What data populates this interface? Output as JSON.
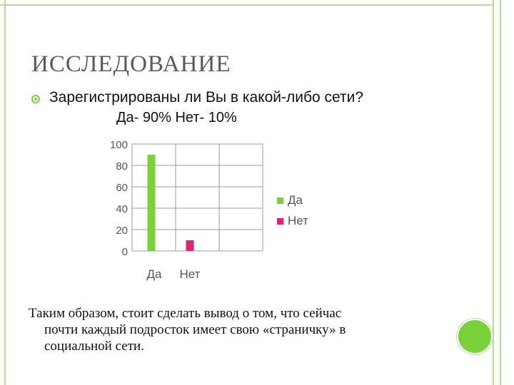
{
  "slide": {
    "title": "ИССЛЕДОВАНИЕ",
    "question": "Зарегистрированы ли Вы в какой-либо сети?",
    "answer": "Да- 90% Нет- 10%",
    "conclusion_line1": "Таким образом, стоит сделать вывод о том, что сейчас",
    "conclusion_line2": "почти каждый подросток имеет свою «страничку» в",
    "conclusion_line3": "социальной сети."
  },
  "icons": {
    "bullet": "circle-bullet-icon",
    "nav": "green-circle-icon"
  },
  "colors": {
    "accent_green": "#7ad23a",
    "frame_green": "#b9dc95",
    "series_da": "#7ad23a",
    "series_net": "#e0237a"
  },
  "chart_data": {
    "type": "bar",
    "categories": [
      "Да",
      "Нет"
    ],
    "series": [
      {
        "name": "Да",
        "values": [
          90,
          0
        ]
      },
      {
        "name": "Нет",
        "values": [
          0,
          10
        ]
      }
    ],
    "yticks": [
      "100",
      "80",
      "60",
      "40",
      "20",
      "0"
    ],
    "ylim": [
      0,
      100
    ],
    "legend": [
      "Да",
      "Нет"
    ],
    "legend_position": "right"
  }
}
